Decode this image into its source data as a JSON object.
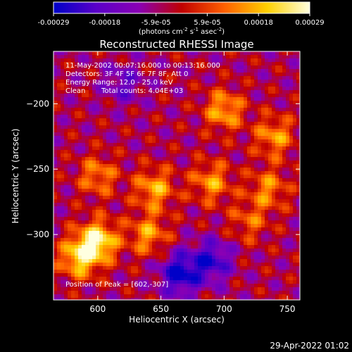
{
  "chart_data": {
    "type": "heatmap",
    "title": "Reconstructed RHESSI Image",
    "xlabel": "Heliocentric X (arcsec)",
    "ylabel": "Heliocentric Y (arcsec)",
    "xlim": [
      565,
      760
    ],
    "ylim": [
      -350,
      -160
    ],
    "x_ticks": [
      600,
      650,
      700,
      750
    ],
    "y_ticks": [
      -200,
      -250,
      -300
    ],
    "colorbar": {
      "ticks": [
        "-0.00029",
        "-0.00018",
        "-5.9e-05",
        "5.9e-05",
        "0.00018",
        "0.00029"
      ],
      "range": [
        -0.00029,
        0.00029
      ],
      "label": "(photons cm",
      "label_sup1": "-2",
      "label_mid": " s",
      "label_sup2": "-1",
      "label_mid2": " asec",
      "label_sup3": "-2",
      "label_end": ")",
      "colors": [
        "#0000c8",
        "#5a00c8",
        "#8a00b4",
        "#c00000",
        "#ff6000",
        "#ffd000",
        "#ffffe0"
      ]
    },
    "annotations": {
      "line1": "11-May-2002 00:07:16.000 to 00:13:16.000",
      "line2": "Detectors: 3F 4F 5F 6F 7F 8F, Att 0",
      "line3": "Energy Range: 12.0 - 25.0 keV",
      "line4_method": "Clean",
      "line4_counts": "Total counts: 4.04E+03",
      "peak": "Position of Peak = [602,-307]"
    },
    "sources": [
      {
        "x": 600,
        "y": -305,
        "value": 0.00029
      },
      {
        "x": 585,
        "y": -318,
        "value": 0.00024
      },
      {
        "x": 640,
        "y": -300,
        "value": 0.00018
      },
      {
        "x": 645,
        "y": -265,
        "value": 0.0002
      },
      {
        "x": 600,
        "y": -255,
        "value": 0.00016
      },
      {
        "x": 700,
        "y": -205,
        "value": 0.0002
      },
      {
        "x": 690,
        "y": -260,
        "value": 0.00018
      },
      {
        "x": 740,
        "y": -225,
        "value": 0.00018
      },
      {
        "x": 735,
        "y": -265,
        "value": 0.00016
      },
      {
        "x": 720,
        "y": -290,
        "value": 0.00012
      },
      {
        "x": 665,
        "y": -330,
        "value": -0.00025
      },
      {
        "x": 690,
        "y": -320,
        "value": -0.0002
      },
      {
        "x": 620,
        "y": -185,
        "value": -0.00012
      }
    ]
  },
  "footer": {
    "timestamp": "29-Apr-2022 01:02"
  }
}
